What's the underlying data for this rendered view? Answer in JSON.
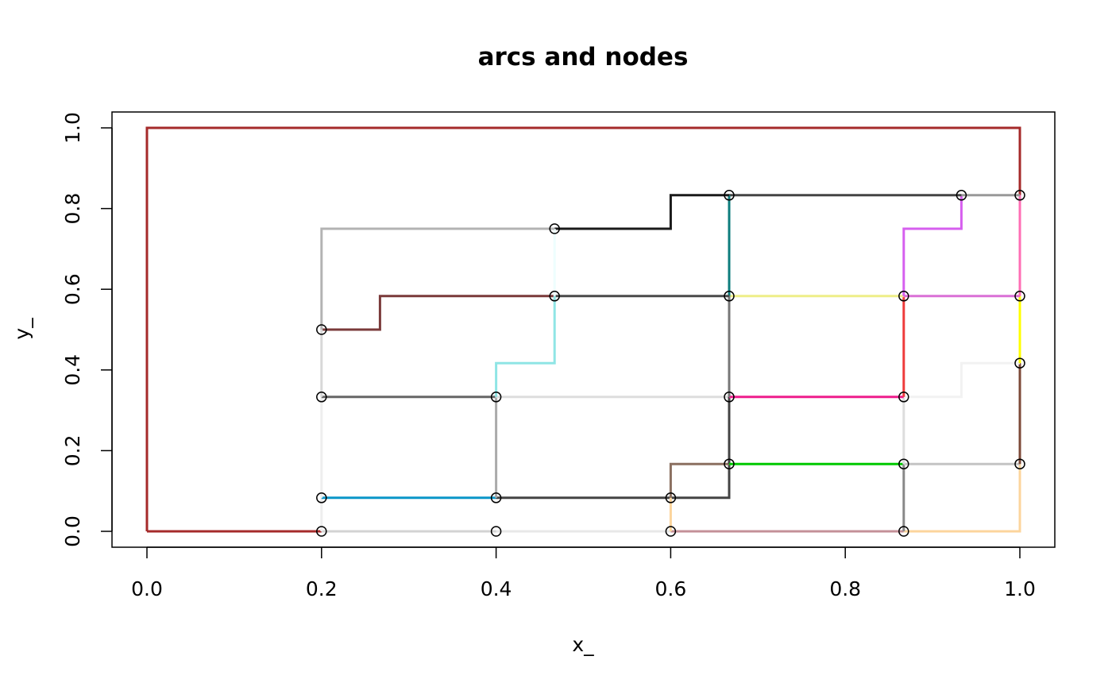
{
  "chart_data": {
    "type": "line",
    "title": "arcs and nodes",
    "xlabel": "x_",
    "ylabel": "y_",
    "xlim": [
      0,
      1
    ],
    "ylim": [
      0,
      1
    ],
    "xticks": [
      "0.0",
      "0.2",
      "0.4",
      "0.6",
      "0.8",
      "1.0"
    ],
    "yticks": [
      "0.0",
      "0.2",
      "0.4",
      "0.6",
      "0.8",
      "1.0"
    ],
    "grid": false,
    "arcs": [
      {
        "color": "#a52a2a",
        "points": [
          [
            0,
            0
          ],
          [
            0,
            1
          ],
          [
            1,
            1
          ],
          [
            1,
            0.833
          ]
        ]
      },
      {
        "color": "#a52a2a",
        "points": [
          [
            0,
            0
          ],
          [
            0.2,
            0
          ]
        ]
      },
      {
        "color": "#d3d3d3",
        "points": [
          [
            0.2,
            0
          ],
          [
            0.4,
            0
          ]
        ]
      },
      {
        "color": "#e8e8e8",
        "points": [
          [
            0.4,
            0
          ],
          [
            0.6,
            0
          ]
        ]
      },
      {
        "color": "#c49098",
        "points": [
          [
            0.6,
            0
          ],
          [
            0.867,
            0
          ]
        ]
      },
      {
        "color": "#fcd59c",
        "points": [
          [
            0.867,
            0
          ],
          [
            1,
            0
          ],
          [
            1,
            0.167
          ]
        ]
      },
      {
        "color": "#eeeeee",
        "points": [
          [
            0.2,
            0
          ],
          [
            0.2,
            0.083
          ]
        ]
      },
      {
        "color": "#0a96c8",
        "points": [
          [
            0.2,
            0.083
          ],
          [
            0.4,
            0.083
          ]
        ]
      },
      {
        "color": "#444444",
        "points": [
          [
            0.4,
            0.083
          ],
          [
            0.6,
            0.083
          ]
        ]
      },
      {
        "color": "#444444",
        "points": [
          [
            0.6,
            0.083
          ],
          [
            0.667,
            0.083
          ],
          [
            0.667,
            0.167
          ]
        ]
      },
      {
        "color": "#eeeeee",
        "points": [
          [
            0.2,
            0.083
          ],
          [
            0.2,
            0.333
          ]
        ]
      },
      {
        "color": "#666666",
        "points": [
          [
            0.2,
            0.333
          ],
          [
            0.4,
            0.333
          ]
        ]
      },
      {
        "color": "#aaaaaa",
        "points": [
          [
            0.4,
            0.333
          ],
          [
            0.4,
            0.083
          ]
        ]
      },
      {
        "color": "#dddddd",
        "points": [
          [
            0.4,
            0.333
          ],
          [
            0.667,
            0.333
          ]
        ]
      },
      {
        "color": "#8b7060",
        "points": [
          [
            0.6,
            0.083
          ],
          [
            0.6,
            0.167
          ],
          [
            0.667,
            0.167
          ]
        ]
      },
      {
        "color": "#fcd59c",
        "points": [
          [
            0.6,
            0.083
          ],
          [
            0.6,
            0
          ]
        ]
      },
      {
        "color": "#444444",
        "points": [
          [
            0.667,
            0.167
          ],
          [
            0.667,
            0.333
          ]
        ]
      },
      {
        "color": "#00c800",
        "points": [
          [
            0.667,
            0.167
          ],
          [
            0.867,
            0.167
          ]
        ]
      },
      {
        "color": "#888888",
        "points": [
          [
            0.867,
            0.167
          ],
          [
            0.867,
            0
          ]
        ]
      },
      {
        "color": "#c4c4c4",
        "points": [
          [
            0.867,
            0.167
          ],
          [
            1,
            0.167
          ]
        ]
      },
      {
        "color": "#7d4a38",
        "points": [
          [
            1,
            0.167
          ],
          [
            1,
            0.417
          ]
        ]
      },
      {
        "color": "#dddddd",
        "points": [
          [
            0.867,
            0.333
          ],
          [
            0.867,
            0.167
          ]
        ]
      },
      {
        "color": "#ee1d8c",
        "points": [
          [
            0.667,
            0.333
          ],
          [
            0.867,
            0.333
          ]
        ]
      },
      {
        "color": "#f2f2f2",
        "points": [
          [
            0.867,
            0.333
          ],
          [
            0.933,
            0.333
          ],
          [
            0.933,
            0.417
          ],
          [
            1,
            0.417
          ]
        ]
      },
      {
        "color": "#ffff00",
        "points": [
          [
            1,
            0.417
          ],
          [
            1,
            0.583
          ]
        ]
      },
      {
        "color": "#ee3b3b",
        "points": [
          [
            0.867,
            0.333
          ],
          [
            0.867,
            0.583
          ]
        ]
      },
      {
        "color": "#eeee88",
        "points": [
          [
            0.667,
            0.583
          ],
          [
            0.867,
            0.583
          ]
        ]
      },
      {
        "color": "#da70d6",
        "points": [
          [
            0.867,
            0.583
          ],
          [
            1,
            0.583
          ]
        ]
      },
      {
        "color": "#ff6eb4",
        "points": [
          [
            1,
            0.583
          ],
          [
            1,
            0.833
          ]
        ]
      },
      {
        "color": "#d65fef",
        "points": [
          [
            0.867,
            0.583
          ],
          [
            0.867,
            0.75
          ],
          [
            0.933,
            0.75
          ],
          [
            0.933,
            0.833
          ]
        ]
      },
      {
        "color": "#999999",
        "points": [
          [
            0.933,
            0.833
          ],
          [
            1,
            0.833
          ]
        ]
      },
      {
        "color": "#444444",
        "points": [
          [
            0.667,
            0.833
          ],
          [
            0.933,
            0.833
          ]
        ]
      },
      {
        "color": "#777777",
        "points": [
          [
            0.667,
            0.583
          ],
          [
            0.667,
            0.333
          ]
        ]
      },
      {
        "color": "#0e7d7d",
        "points": [
          [
            0.667,
            0.583
          ],
          [
            0.667,
            0.833
          ]
        ]
      },
      {
        "color": "#1a1a1a",
        "points": [
          [
            0.467,
            0.75
          ],
          [
            0.6,
            0.75
          ],
          [
            0.6,
            0.833
          ],
          [
            0.667,
            0.833
          ]
        ]
      },
      {
        "color": "#4a4a4a",
        "points": [
          [
            0.467,
            0.583
          ],
          [
            0.667,
            0.583
          ]
        ]
      },
      {
        "color": "#7a3a3a",
        "points": [
          [
            0.2,
            0.5
          ],
          [
            0.267,
            0.5
          ],
          [
            0.267,
            0.583
          ],
          [
            0.467,
            0.583
          ]
        ]
      },
      {
        "color": "#8fe5e5",
        "points": [
          [
            0.4,
            0.333
          ],
          [
            0.4,
            0.417
          ],
          [
            0.467,
            0.417
          ],
          [
            0.467,
            0.583
          ]
        ]
      },
      {
        "color": "#eefefe",
        "points": [
          [
            0.467,
            0.583
          ],
          [
            0.467,
            0.75
          ]
        ]
      },
      {
        "color": "#b3b3b3",
        "points": [
          [
            0.2,
            0.5
          ],
          [
            0.2,
            0.75
          ],
          [
            0.467,
            0.75
          ]
        ]
      },
      {
        "color": "#d8d8d8",
        "points": [
          [
            0.2,
            0.333
          ],
          [
            0.2,
            0.5
          ]
        ]
      }
    ],
    "nodes": [
      [
        0.2,
        0
      ],
      [
        0.4,
        0
      ],
      [
        0.6,
        0
      ],
      [
        0.867,
        0
      ],
      [
        0.2,
        0.083
      ],
      [
        0.4,
        0.083
      ],
      [
        0.6,
        0.083
      ],
      [
        0.667,
        0.167
      ],
      [
        0.867,
        0.167
      ],
      [
        1,
        0.167
      ],
      [
        0.2,
        0.333
      ],
      [
        0.4,
        0.333
      ],
      [
        0.667,
        0.333
      ],
      [
        0.867,
        0.333
      ],
      [
        1,
        0.417
      ],
      [
        0.2,
        0.5
      ],
      [
        0.467,
        0.583
      ],
      [
        0.667,
        0.583
      ],
      [
        0.867,
        0.583
      ],
      [
        1,
        0.583
      ],
      [
        0.467,
        0.75
      ],
      [
        0.667,
        0.833
      ],
      [
        0.933,
        0.833
      ],
      [
        1,
        0.833
      ]
    ]
  }
}
